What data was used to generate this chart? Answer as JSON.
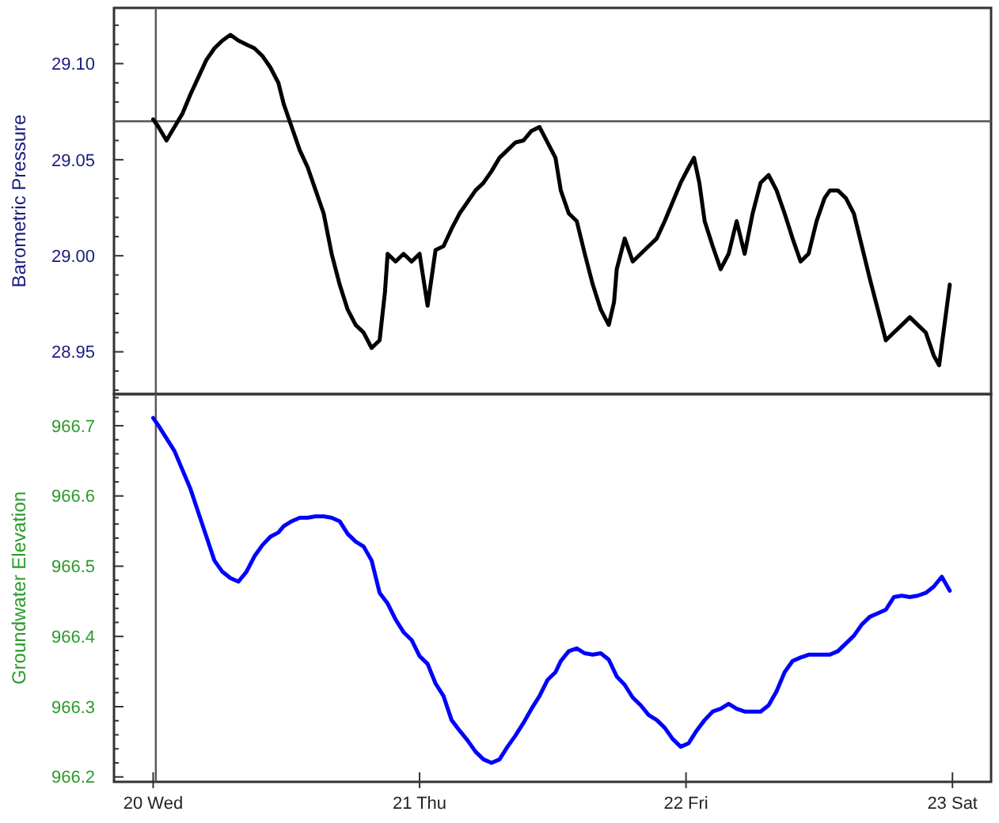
{
  "chart_data": [
    {
      "type": "line",
      "ylabel": "Barometric Pressure",
      "tick_labels": "y",
      "xlim": [
        19.853,
        23.145
      ],
      "ylim": [
        28.928,
        29.129
      ],
      "yticks": [
        {
          "value": 28.93,
          "label": null
        },
        {
          "value": 28.94,
          "label": null
        },
        28.95,
        {
          "value": 28.96,
          "label": null
        },
        {
          "value": 28.97,
          "label": null
        },
        {
          "value": 28.98,
          "label": null
        },
        {
          "value": 28.99,
          "label": null
        },
        {
          "value": 29.0,
          "label": "29.00"
        },
        {
          "value": 29.01,
          "label": null
        },
        {
          "value": 29.02,
          "label": null
        },
        {
          "value": 29.03,
          "label": null
        },
        {
          "value": 29.04,
          "label": null
        },
        29.05,
        {
          "value": 29.06,
          "label": null
        },
        {
          "value": 29.07,
          "label": null
        },
        {
          "value": 29.08,
          "label": null
        },
        {
          "value": 29.09,
          "label": null
        },
        {
          "value": 29.1,
          "label": "29.10"
        },
        {
          "value": 29.11,
          "label": null
        },
        {
          "value": 29.12,
          "label": null
        }
      ],
      "ref_lines": [
        {
          "axis": "y",
          "value": 29.07,
          "color": "#555555"
        },
        {
          "axis": "x",
          "value": 20.01,
          "color": "#555555"
        }
      ],
      "x": [
        20.0,
        20.02,
        20.05,
        20.08,
        20.11,
        20.14,
        20.17,
        20.2,
        20.23,
        20.26,
        20.29,
        20.32,
        20.35,
        20.38,
        20.41,
        20.44,
        20.47,
        20.49,
        20.52,
        20.55,
        20.58,
        20.61,
        20.64,
        20.67,
        20.7,
        20.73,
        20.76,
        20.79,
        20.82,
        20.85,
        20.87,
        20.88,
        20.91,
        20.94,
        20.97,
        21.0,
        21.03,
        21.06,
        21.09,
        21.12,
        21.15,
        21.18,
        21.21,
        21.24,
        21.27,
        21.3,
        21.33,
        21.36,
        21.39,
        21.42,
        21.45,
        21.48,
        21.51,
        21.53,
        21.56,
        21.59,
        21.62,
        21.65,
        21.68,
        21.71,
        21.73,
        21.74,
        21.77,
        21.8,
        21.83,
        21.86,
        21.89,
        21.92,
        21.95,
        21.98,
        22.01,
        22.03,
        22.05,
        22.07,
        22.1,
        22.13,
        22.16,
        22.19,
        22.22,
        22.25,
        22.28,
        22.31,
        22.34,
        22.37,
        22.4,
        22.43,
        22.46,
        22.49,
        22.52,
        22.54,
        22.57,
        22.6,
        22.63,
        22.66,
        22.69,
        22.72,
        22.75,
        22.78,
        22.81,
        22.84,
        22.87,
        22.9,
        22.93,
        22.95,
        22.97,
        22.99
      ],
      "series": [
        {
          "color": "#000000",
          "values": [
            29.071,
            29.067,
            29.06,
            29.067,
            29.074,
            29.084,
            29.093,
            29.102,
            29.108,
            29.112,
            29.115,
            29.112,
            29.11,
            29.108,
            29.104,
            29.098,
            29.09,
            29.079,
            29.067,
            29.055,
            29.046,
            29.034,
            29.022,
            29.001,
            28.985,
            28.972,
            28.964,
            28.96,
            28.952,
            28.956,
            28.981,
            29.001,
            28.997,
            29.001,
            28.997,
            29.001,
            28.974,
            29.003,
            29.005,
            29.014,
            29.022,
            29.028,
            29.034,
            29.038,
            29.044,
            29.051,
            29.055,
            29.059,
            29.06,
            29.065,
            29.067,
            29.059,
            29.051,
            29.034,
            29.022,
            29.018,
            29.001,
            28.985,
            28.972,
            28.964,
            28.976,
            28.993,
            29.009,
            28.997,
            29.001,
            29.005,
            29.009,
            29.018,
            29.028,
            29.038,
            29.046,
            29.051,
            29.038,
            29.018,
            29.005,
            28.993,
            29.001,
            29.018,
            29.001,
            29.022,
            29.038,
            29.042,
            29.034,
            29.022,
            29.009,
            28.997,
            29.001,
            29.018,
            29.03,
            29.034,
            29.034,
            29.03,
            29.022,
            29.005,
            28.988,
            28.972,
            28.956,
            28.96,
            28.964,
            28.968,
            28.964,
            28.96,
            28.948,
            28.943,
            28.964,
            28.985
          ]
        }
      ]
    },
    {
      "type": "line",
      "ylabel": "Groundwater Elevation",
      "xlim": [
        19.853,
        23.145
      ],
      "ylim": [
        966.193,
        966.745
      ],
      "xticks": [
        {
          "value": 20,
          "label": "20 Wed"
        },
        {
          "value": 21,
          "label": "21 Thu"
        },
        {
          "value": 22,
          "label": "22 Fri"
        },
        {
          "value": 23,
          "label": "23 Sat"
        }
      ],
      "yticks": [
        966.2,
        {
          "value": 966.22,
          "label": null
        },
        {
          "value": 966.24,
          "label": null
        },
        {
          "value": 966.26,
          "label": null
        },
        {
          "value": 966.28,
          "label": null
        },
        966.3,
        {
          "value": 966.32,
          "label": null
        },
        {
          "value": 966.34,
          "label": null
        },
        {
          "value": 966.36,
          "label": null
        },
        {
          "value": 966.38,
          "label": null
        },
        966.4,
        {
          "value": 966.42,
          "label": null
        },
        {
          "value": 966.44,
          "label": null
        },
        {
          "value": 966.46,
          "label": null
        },
        {
          "value": 966.48,
          "label": null
        },
        966.5,
        {
          "value": 966.52,
          "label": null
        },
        {
          "value": 966.54,
          "label": null
        },
        {
          "value": 966.56,
          "label": null
        },
        {
          "value": 966.58,
          "label": null
        },
        966.6,
        {
          "value": 966.62,
          "label": null
        },
        {
          "value": 966.64,
          "label": null
        },
        {
          "value": 966.66,
          "label": null
        },
        {
          "value": 966.68,
          "label": null
        },
        966.7,
        {
          "value": 966.72,
          "label": null
        },
        {
          "value": 966.74,
          "label": null
        }
      ],
      "ref_lines": [
        {
          "axis": "x",
          "value": 20.01,
          "color": "#555555"
        }
      ],
      "x": [
        20.0,
        20.02,
        20.05,
        20.08,
        20.11,
        20.14,
        20.17,
        20.2,
        20.23,
        20.26,
        20.29,
        20.32,
        20.35,
        20.38,
        20.41,
        20.44,
        20.47,
        20.49,
        20.52,
        20.55,
        20.58,
        20.61,
        20.64,
        20.67,
        20.7,
        20.73,
        20.76,
        20.79,
        20.82,
        20.85,
        20.88,
        20.91,
        20.94,
        20.97,
        21.0,
        21.03,
        21.06,
        21.09,
        21.12,
        21.15,
        21.18,
        21.21,
        21.24,
        21.27,
        21.3,
        21.33,
        21.36,
        21.39,
        21.42,
        21.45,
        21.48,
        21.51,
        21.53,
        21.56,
        21.59,
        21.62,
        21.65,
        21.68,
        21.71,
        21.74,
        21.77,
        21.8,
        21.83,
        21.86,
        21.89,
        21.92,
        21.95,
        21.98,
        22.01,
        22.04,
        22.07,
        22.1,
        22.13,
        22.16,
        22.19,
        22.22,
        22.25,
        22.28,
        22.31,
        22.34,
        22.37,
        22.4,
        22.43,
        22.46,
        22.49,
        22.52,
        22.54,
        22.57,
        22.6,
        22.63,
        22.66,
        22.69,
        22.72,
        22.75,
        22.78,
        22.81,
        22.84,
        22.87,
        22.9,
        22.93,
        22.96,
        22.99
      ],
      "series": [
        {
          "color": "#0000ff",
          "values": [
            966.711,
            966.7,
            966.682,
            966.664,
            966.637,
            966.61,
            966.576,
            966.542,
            966.508,
            966.492,
            966.483,
            966.478,
            966.492,
            966.514,
            966.53,
            966.542,
            966.548,
            966.557,
            966.564,
            966.569,
            966.569,
            966.571,
            966.571,
            966.569,
            966.564,
            966.546,
            966.535,
            966.528,
            966.508,
            966.462,
            966.447,
            966.424,
            966.406,
            966.395,
            966.372,
            966.361,
            966.333,
            966.315,
            966.281,
            966.266,
            966.252,
            966.236,
            966.225,
            966.22,
            966.225,
            966.243,
            966.259,
            966.277,
            966.297,
            966.315,
            966.338,
            966.349,
            966.365,
            966.379,
            966.383,
            966.376,
            966.374,
            966.376,
            966.367,
            966.343,
            966.331,
            966.313,
            966.302,
            966.288,
            966.281,
            966.27,
            966.254,
            966.243,
            966.248,
            966.266,
            966.281,
            966.293,
            966.297,
            966.304,
            966.297,
            966.293,
            966.293,
            966.293,
            966.302,
            966.322,
            966.349,
            966.365,
            966.37,
            966.374,
            966.374,
            966.374,
            966.374,
            966.379,
            966.39,
            966.401,
            966.417,
            966.428,
            966.433,
            966.438,
            966.456,
            966.458,
            966.456,
            966.458,
            966.462,
            966.471,
            966.485,
            966.465
          ]
        }
      ]
    }
  ]
}
